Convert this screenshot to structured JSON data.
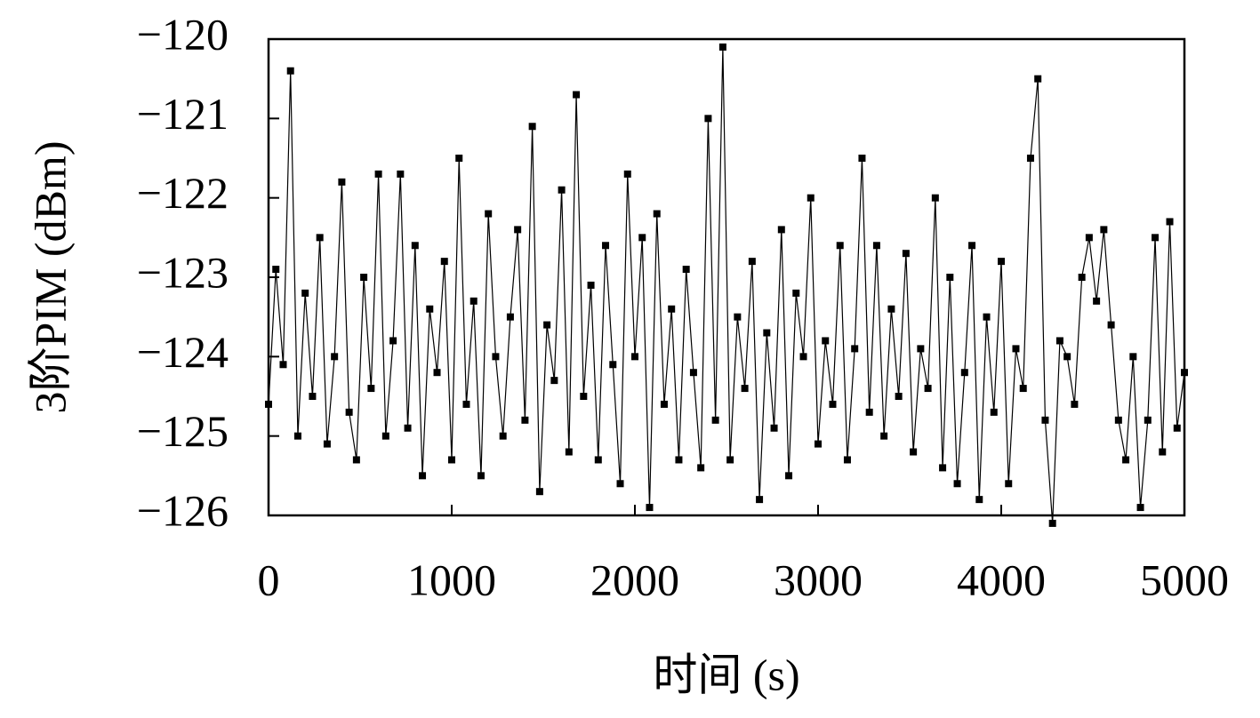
{
  "chart_data": {
    "type": "line",
    "xlabel": "时间 (s)",
    "ylabel": "3阶PIM (dBm)",
    "x": [
      0,
      40,
      80,
      120,
      160,
      200,
      240,
      280,
      320,
      360,
      400,
      440,
      480,
      520,
      560,
      600,
      640,
      680,
      720,
      760,
      800,
      840,
      880,
      920,
      960,
      1000,
      1040,
      1080,
      1120,
      1160,
      1200,
      1240,
      1280,
      1320,
      1360,
      1400,
      1440,
      1480,
      1520,
      1560,
      1600,
      1640,
      1680,
      1720,
      1760,
      1800,
      1840,
      1880,
      1920,
      1960,
      2000,
      2040,
      2080,
      2120,
      2160,
      2200,
      2240,
      2280,
      2320,
      2360,
      2400,
      2440,
      2480,
      2520,
      2560,
      2600,
      2640,
      2680,
      2720,
      2760,
      2800,
      2840,
      2880,
      2920,
      2960,
      3000,
      3040,
      3080,
      3120,
      3160,
      3200,
      3240,
      3280,
      3320,
      3360,
      3400,
      3440,
      3480,
      3520,
      3560,
      3600,
      3640,
      3680,
      3720,
      3760,
      3800,
      3840,
      3880,
      3920,
      3960,
      4000,
      4040,
      4080,
      4120,
      4160,
      4200,
      4240,
      4280,
      4320,
      4360,
      4400,
      4440,
      4480,
      4520,
      4560,
      4600,
      4640,
      4680,
      4720,
      4760,
      4800,
      4840,
      4880,
      4920,
      4960,
      5000
    ],
    "values": [
      -124.6,
      -122.9,
      -124.1,
      -120.4,
      -125.0,
      -123.2,
      -124.5,
      -122.5,
      -125.1,
      -124.0,
      -121.8,
      -124.7,
      -125.3,
      -123.0,
      -124.4,
      -121.7,
      -125.0,
      -123.8,
      -121.7,
      -124.9,
      -122.6,
      -125.5,
      -123.4,
      -124.2,
      -122.8,
      -125.3,
      -121.5,
      -124.6,
      -123.3,
      -125.5,
      -122.2,
      -124.0,
      -125.0,
      -123.5,
      -122.4,
      -124.8,
      -121.1,
      -125.7,
      -123.6,
      -124.3,
      -121.9,
      -125.2,
      -120.7,
      -124.5,
      -123.1,
      -125.3,
      -122.6,
      -124.1,
      -125.6,
      -121.7,
      -124.0,
      -122.5,
      -125.9,
      -122.2,
      -124.6,
      -123.4,
      -125.3,
      -122.9,
      -124.2,
      -125.4,
      -121.0,
      -124.8,
      -120.1,
      -125.3,
      -123.5,
      -124.4,
      -122.8,
      -125.8,
      -123.7,
      -124.9,
      -122.4,
      -125.5,
      -123.2,
      -124.0,
      -122.0,
      -125.1,
      -123.8,
      -124.6,
      -122.6,
      -125.3,
      -123.9,
      -121.5,
      -124.7,
      -122.6,
      -125.0,
      -123.4,
      -124.5,
      -122.7,
      -125.2,
      -123.9,
      -124.4,
      -122.0,
      -125.4,
      -123.0,
      -125.6,
      -124.2,
      -122.6,
      -125.8,
      -123.5,
      -124.7,
      -122.8,
      -125.6,
      -123.9,
      -124.4,
      -121.5,
      -120.5,
      -124.8,
      -126.1,
      -123.8,
      -124.0,
      -124.6,
      -123.0,
      -122.5,
      -123.3,
      -122.4,
      -123.6,
      -124.8,
      -125.3,
      -124.0,
      -125.9,
      -124.8,
      -122.5,
      -125.2,
      -122.3,
      -124.9,
      -124.2
    ],
    "color": "#000000",
    "xlim": [
      0,
      5000
    ],
    "xticks": [
      0,
      1000,
      2000,
      3000,
      4000,
      5000
    ],
    "ylim": [
      -126,
      -120
    ],
    "yticks": [
      {
        "value": -120,
        "label": "−120"
      },
      {
        "value": -121,
        "label": "−121"
      },
      {
        "value": -122,
        "label": "−122"
      },
      {
        "value": -123,
        "label": "−123"
      },
      {
        "value": -124,
        "label": "−124"
      },
      {
        "value": -125,
        "label": "−125"
      },
      {
        "value": -126,
        "label": "−126"
      }
    ]
  }
}
